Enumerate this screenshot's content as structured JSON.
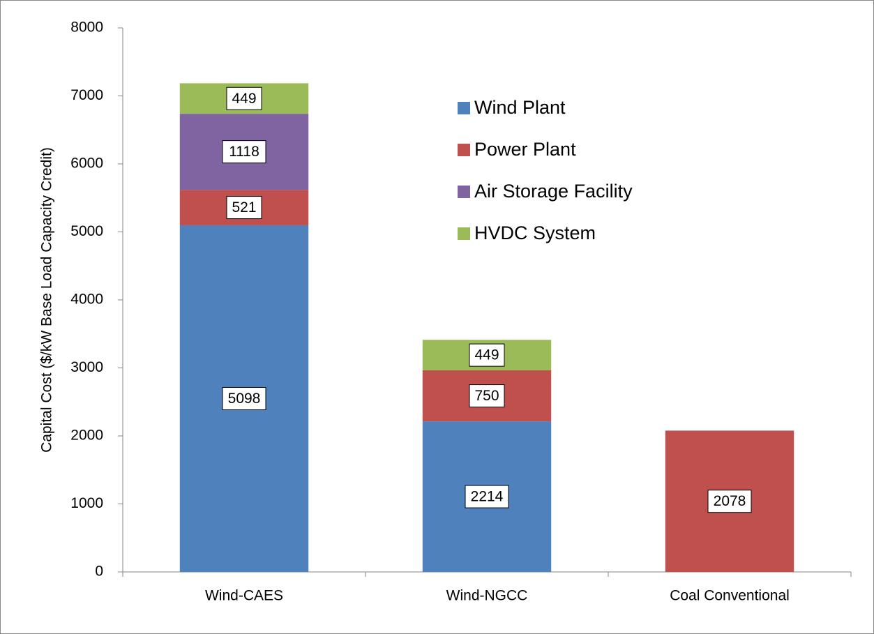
{
  "chart_data": {
    "type": "bar",
    "stacked": true,
    "y_label": "Capital Cost ($/kW Base Load Capacity Credit)",
    "categories": [
      "Wind-CAES",
      "Wind-NGCC",
      "Coal Conventional"
    ],
    "series": [
      {
        "name": "Wind Plant",
        "color": "#4f81bd",
        "values": [
          5098,
          2214,
          null
        ]
      },
      {
        "name": "Power Plant",
        "color": "#c0504d",
        "values": [
          521,
          750,
          2078
        ]
      },
      {
        "name": "Air Storage Facility",
        "color": "#8064a2",
        "values": [
          1118,
          null,
          null
        ]
      },
      {
        "name": "HVDC System",
        "color": "#9bbb59",
        "values": [
          449,
          449,
          null
        ]
      }
    ],
    "ylim": [
      0,
      8000
    ],
    "yticks": [
      0,
      1000,
      2000,
      3000,
      4000,
      5000,
      6000,
      7000,
      8000
    ],
    "legend": "upper right"
  }
}
